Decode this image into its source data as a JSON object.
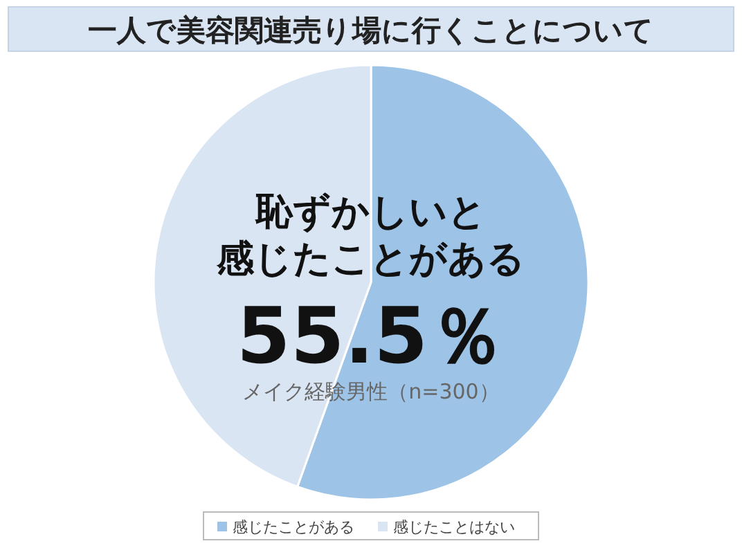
{
  "chart_data": {
    "type": "pie",
    "title": "一人で美容関連売り場に行くことについて",
    "categories": [
      "感じたことがある",
      "感じたことはない"
    ],
    "values": [
      55.5,
      44.5
    ],
    "colors": [
      "#9dc3e6",
      "#dae5f3"
    ],
    "annotations": [
      "恥ずかしいと",
      "感じたことがある",
      "55.5％",
      "メイク経験男性（n=300）"
    ],
    "legend": "bottom"
  }
}
